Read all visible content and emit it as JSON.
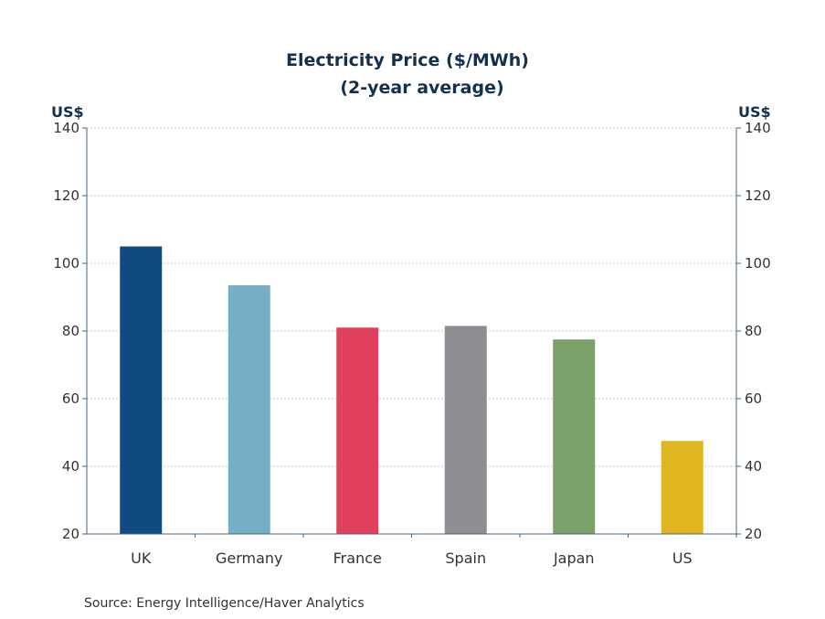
{
  "chart_data": {
    "type": "bar",
    "title": "Electricity Price ($/MWh)",
    "subtitle": "(2-year average)",
    "ylabel_left": "US$",
    "ylabel_right": "US$",
    "ylim": [
      20,
      140
    ],
    "yticks": [
      20,
      40,
      60,
      80,
      100,
      120,
      140
    ],
    "grid": true,
    "categories": [
      "UK",
      "Germany",
      "France",
      "Spain",
      "Japan",
      "US"
    ],
    "values": [
      105,
      93.5,
      81,
      81.5,
      77.5,
      47.5
    ],
    "colors": [
      "#114a80",
      "#75aec6",
      "#e0405b",
      "#8e8d92",
      "#7ba168",
      "#dfb520"
    ],
    "source": "Source:  Energy Intelligence/Haver Analytics"
  }
}
